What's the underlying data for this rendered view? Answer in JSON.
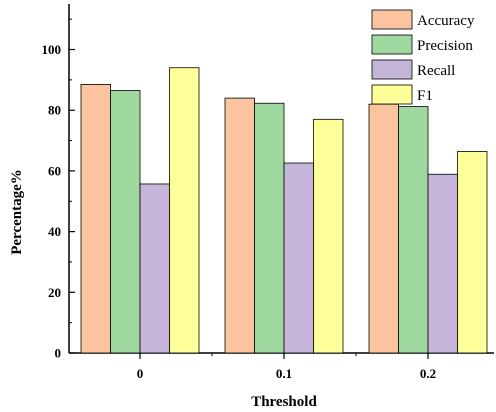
{
  "chart_data": {
    "type": "bar",
    "title": "",
    "xlabel": "Threshold",
    "ylabel": "Percentage%",
    "categories": [
      "0",
      "0.1",
      "0.2"
    ],
    "ylim": [
      0,
      115
    ],
    "yticks": [
      0,
      20,
      40,
      60,
      80,
      100
    ],
    "grid": false,
    "legend_position": "top-right",
    "series": [
      {
        "name": "Accuracy",
        "color": "#FBC49E",
        "values": [
          88.5,
          84.0,
          82.0
        ]
      },
      {
        "name": "Precision",
        "color": "#9ED89E",
        "values": [
          86.5,
          82.3,
          81.2
        ]
      },
      {
        "name": "Recall",
        "color": "#C4B5D9",
        "values": [
          55.7,
          62.6,
          58.9
        ]
      },
      {
        "name": "F1",
        "color": "#FFFF99",
        "values": [
          94.0,
          77.0,
          66.4
        ]
      }
    ]
  }
}
